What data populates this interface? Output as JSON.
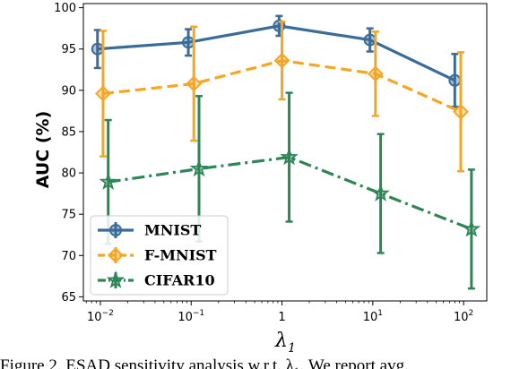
{
  "chart_data": {
    "type": "line",
    "xlabel": "λ",
    "xlabel_sub": "1",
    "ylabel": "AUC (%)",
    "x": [
      "1e-2",
      "1e-1",
      "1",
      "1e1",
      "1e2"
    ],
    "x_values": [
      0.01,
      0.1,
      1,
      10,
      100
    ],
    "x_tick_labels": [
      {
        "base": "10",
        "exp": "−2"
      },
      {
        "base": "10",
        "exp": "−1"
      },
      {
        "base": "1",
        "exp": ""
      },
      {
        "base": "10",
        "exp": "1"
      },
      {
        "base": "10",
        "exp": "2"
      }
    ],
    "x_scale": "log",
    "ylim": [
      64.5,
      100.5
    ],
    "y_ticks": [
      65,
      70,
      75,
      80,
      85,
      90,
      95,
      100
    ],
    "grid": false,
    "legend_position": "lower-left",
    "series": [
      {
        "name": "MNIST",
        "color": "#3a6c9a",
        "marker": "circle",
        "linestyle": "solid",
        "x_plot": [
          0.0093,
          0.093,
          0.93,
          9.3,
          80
        ],
        "values": [
          95.0,
          95.8,
          97.8,
          96.1,
          91.2
        ],
        "errors": [
          2.3,
          1.6,
          1.2,
          1.4,
          3.2
        ]
      },
      {
        "name": "F-MNIST",
        "color": "#f5a623",
        "marker": "diamond",
        "linestyle": "dashed",
        "x_plot": [
          0.0107,
          0.107,
          1.0,
          10.7,
          93
        ],
        "values": [
          89.6,
          90.8,
          93.6,
          92.0,
          87.4
        ],
        "errors": [
          7.6,
          6.9,
          4.7,
          5.1,
          7.2
        ]
      },
      {
        "name": "CIFAR10",
        "color": "#2e8556",
        "marker": "star",
        "linestyle": "dashdot",
        "x_plot": [
          0.0122,
          0.122,
          1.2,
          12.2,
          122
        ],
        "values": [
          78.9,
          80.5,
          81.9,
          77.5,
          73.2
        ],
        "errors": [
          7.5,
          8.8,
          7.8,
          7.2,
          7.2
        ]
      }
    ]
  },
  "caption": "Figure 2. ESAD sensitivity analysis w.r.t. λ₁. We report avg."
}
